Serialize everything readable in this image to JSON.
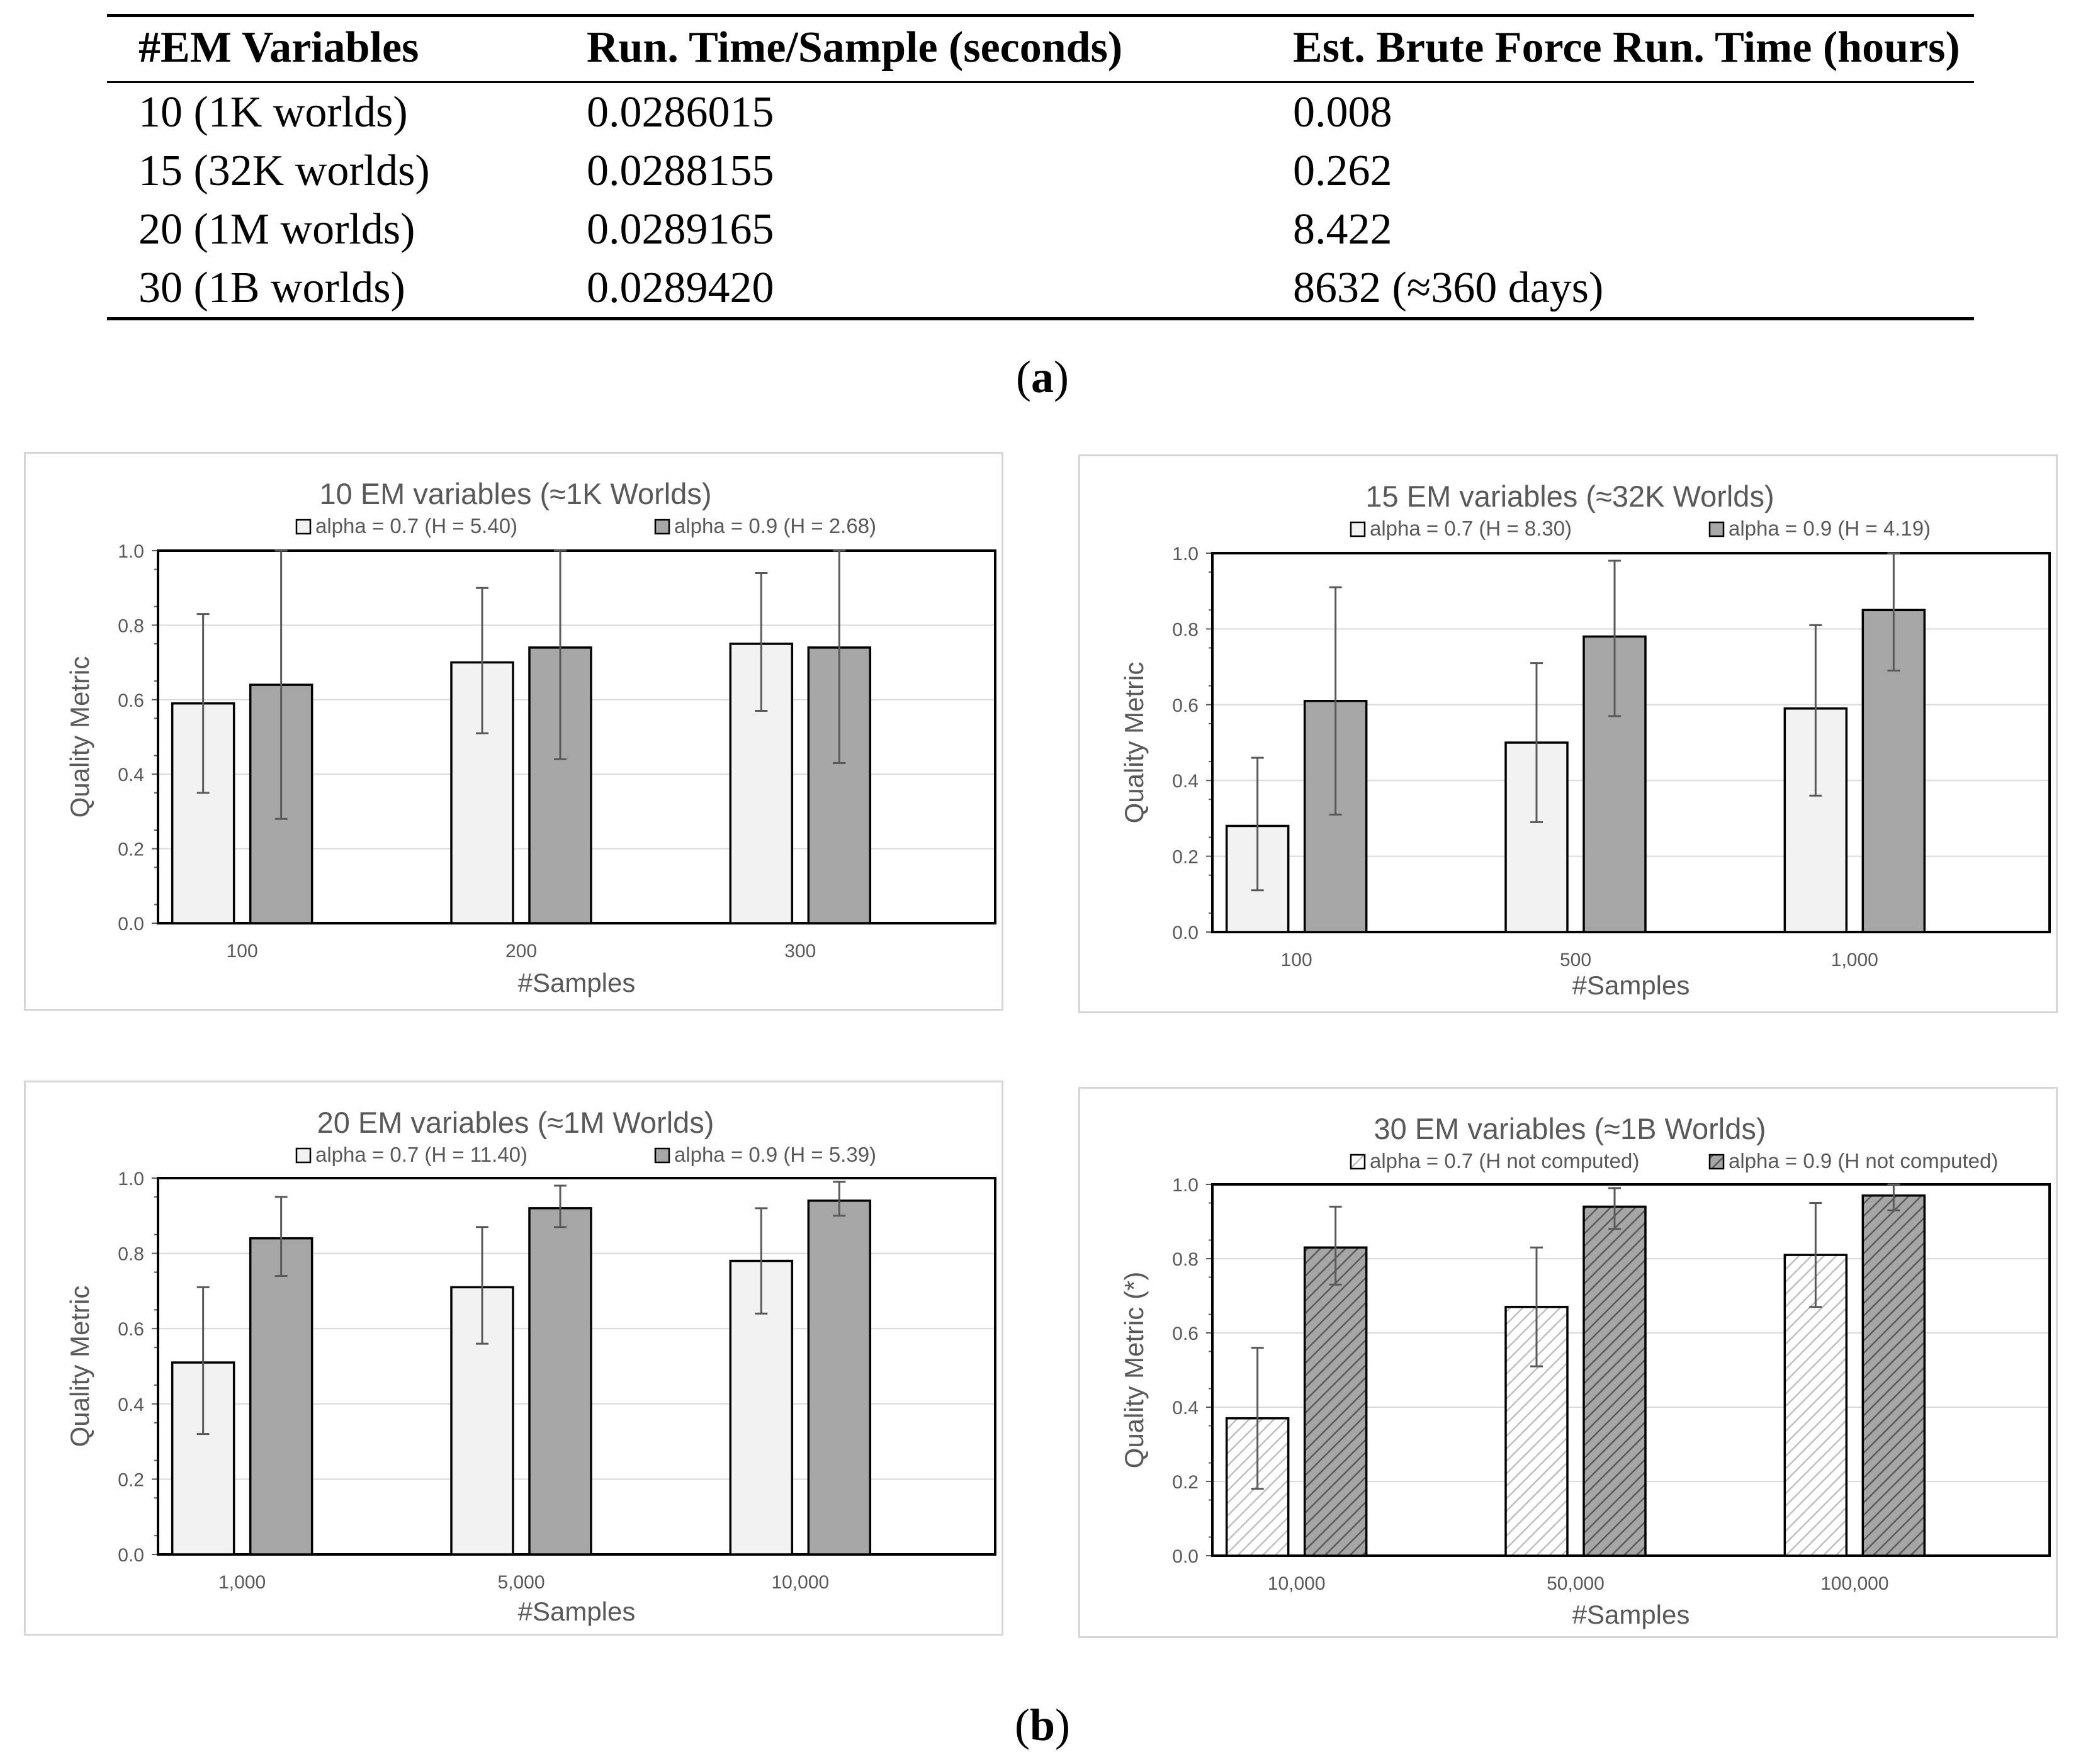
{
  "table": {
    "headers": [
      "#EM Variables",
      "Run. Time/Sample (seconds)",
      "Est. Brute Force Run. Time (hours)"
    ],
    "rows": [
      [
        "10 (1K worlds)",
        "0.0286015",
        "0.008"
      ],
      [
        "15 (32K worlds)",
        "0.0288155",
        "0.262"
      ],
      [
        "20 (1M worlds)",
        "0.0289165",
        "8.422"
      ],
      [
        "30 (1B worlds)",
        "0.0289420",
        "8632 (≈360 days)"
      ]
    ],
    "caption_open": "(",
    "caption_letter": "a",
    "caption_close": ")"
  },
  "figure_caption": {
    "open": "(",
    "letter": "b",
    "close": ")"
  },
  "colors": {
    "light_bar": "#f2f2f2",
    "dark_bar": "#a6a6a6",
    "grid": "#d9d9d9",
    "text": "#595959",
    "bar_stroke": "#000000"
  },
  "chart_data": [
    {
      "type": "bar",
      "title": "10 EM variables (≈1K Worlds)",
      "xlabel": "#Samples",
      "ylabel": "Quality Metric",
      "categories": [
        "100",
        "200",
        "300"
      ],
      "ylim": [
        0,
        1
      ],
      "yticks": [
        "0.0",
        "0.2",
        "0.4",
        "0.6",
        "0.8",
        "1.0"
      ],
      "grid": true,
      "legend_position": "top",
      "hatched": false,
      "series": [
        {
          "name": "alpha = 0.7 (H = 5.40)",
          "values": [
            0.59,
            0.7,
            0.75
          ],
          "err_low": [
            0.35,
            0.51,
            0.57
          ],
          "err_high": [
            0.83,
            0.9,
            0.94
          ],
          "color": "#f2f2f2"
        },
        {
          "name": "alpha = 0.9 (H = 2.68)",
          "values": [
            0.64,
            0.74,
            0.74
          ],
          "err_low": [
            0.28,
            0.44,
            0.43
          ],
          "err_high": [
            1.0,
            1.0,
            1.0
          ],
          "color": "#a6a6a6"
        }
      ]
    },
    {
      "type": "bar",
      "title": "15 EM variables (≈32K Worlds)",
      "xlabel": "#Samples",
      "ylabel": "Quality Metric",
      "categories": [
        "100",
        "500",
        "1,000"
      ],
      "ylim": [
        0,
        1
      ],
      "yticks": [
        "0.0",
        "0.2",
        "0.4",
        "0.6",
        "0.8",
        "1.0"
      ],
      "grid": true,
      "legend_position": "top",
      "hatched": false,
      "series": [
        {
          "name": "alpha = 0.7 (H = 8.30)",
          "values": [
            0.28,
            0.5,
            0.59
          ],
          "err_low": [
            0.11,
            0.29,
            0.36
          ],
          "err_high": [
            0.46,
            0.71,
            0.81
          ],
          "color": "#f2f2f2"
        },
        {
          "name": "alpha = 0.9 (H = 4.19)",
          "values": [
            0.61,
            0.78,
            0.85
          ],
          "err_low": [
            0.31,
            0.57,
            0.69
          ],
          "err_high": [
            0.91,
            0.98,
            1.0
          ],
          "color": "#a6a6a6"
        }
      ]
    },
    {
      "type": "bar",
      "title": "20 EM variables (≈1M Worlds)",
      "xlabel": "#Samples",
      "ylabel": "Quality Metric",
      "categories": [
        "1,000",
        "5,000",
        "10,000"
      ],
      "ylim": [
        0,
        1
      ],
      "yticks": [
        "0.0",
        "0.2",
        "0.4",
        "0.6",
        "0.8",
        "1.0"
      ],
      "grid": true,
      "legend_position": "top",
      "hatched": false,
      "series": [
        {
          "name": "alpha = 0.7 (H = 11.40)",
          "values": [
            0.51,
            0.71,
            0.78
          ],
          "err_low": [
            0.32,
            0.56,
            0.64
          ],
          "err_high": [
            0.71,
            0.87,
            0.92
          ],
          "color": "#f2f2f2"
        },
        {
          "name": "alpha = 0.9 (H = 5.39)",
          "values": [
            0.84,
            0.92,
            0.94
          ],
          "err_low": [
            0.74,
            0.87,
            0.9
          ],
          "err_high": [
            0.95,
            0.98,
            0.99
          ],
          "color": "#a6a6a6"
        }
      ]
    },
    {
      "type": "bar",
      "title": "30 EM variables (≈1B Worlds)",
      "xlabel": "#Samples",
      "ylabel": "Quality Metric (*)",
      "categories": [
        "10,000",
        "50,000",
        "100,000"
      ],
      "ylim": [
        0,
        1
      ],
      "yticks": [
        "0.0",
        "0.2",
        "0.4",
        "0.6",
        "0.8",
        "1.0"
      ],
      "grid": true,
      "legend_position": "top",
      "hatched": true,
      "series": [
        {
          "name": "alpha = 0.7 (H not computed)",
          "values": [
            0.37,
            0.67,
            0.81
          ],
          "err_low": [
            0.18,
            0.51,
            0.67
          ],
          "err_high": [
            0.56,
            0.83,
            0.95
          ],
          "color": "#f2f2f2"
        },
        {
          "name": "alpha = 0.9 (H not computed)",
          "values": [
            0.83,
            0.94,
            0.97
          ],
          "err_low": [
            0.73,
            0.88,
            0.93
          ],
          "err_high": [
            0.94,
            0.99,
            1.0
          ],
          "color": "#a6a6a6"
        }
      ]
    }
  ]
}
